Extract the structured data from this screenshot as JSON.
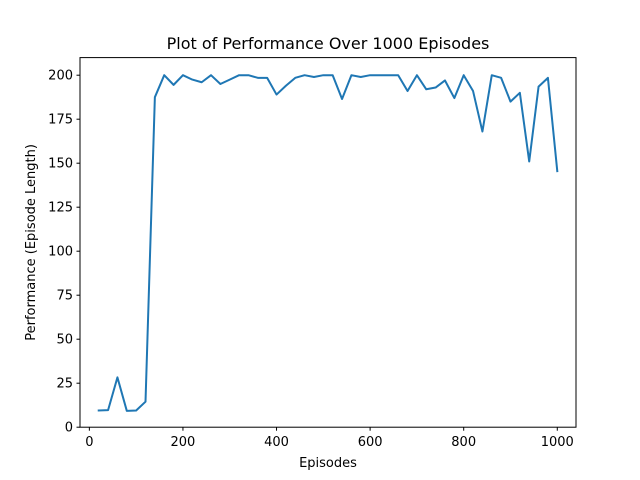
{
  "chart_data": {
    "type": "line",
    "title": "Plot of Performance Over 1000 Episodes",
    "xlabel": "Episodes",
    "ylabel": "Performance (Episode Length)",
    "xlim": [
      -20,
      1040
    ],
    "ylim": [
      0,
      210
    ],
    "xticks": [
      0,
      200,
      400,
      600,
      800,
      1000
    ],
    "yticks": [
      0,
      25,
      50,
      75,
      100,
      125,
      150,
      175,
      200
    ],
    "grid": false,
    "series": [
      {
        "color": "#1f77b4",
        "x": [
          20,
          40,
          60,
          80,
          100,
          120,
          140,
          160,
          180,
          200,
          220,
          240,
          260,
          280,
          300,
          320,
          340,
          360,
          380,
          400,
          420,
          440,
          460,
          480,
          500,
          520,
          540,
          560,
          580,
          600,
          620,
          640,
          660,
          680,
          700,
          720,
          740,
          760,
          780,
          800,
          820,
          840,
          860,
          880,
          900,
          920,
          940,
          960,
          980,
          1000
        ],
        "y": [
          9.5,
          9.7,
          28.3,
          9.3,
          9.5,
          14.5,
          187.5,
          200,
          194.5,
          200,
          197.5,
          196,
          200,
          195,
          197.5,
          200,
          200,
          198.5,
          198.5,
          189,
          194,
          198.5,
          200,
          199,
          200,
          200,
          186.5,
          200,
          199,
          200,
          200,
          200,
          200,
          191,
          200,
          192,
          193,
          197,
          187,
          200,
          191,
          168,
          200,
          198.5,
          185,
          190,
          151,
          193.5,
          198.5,
          145.5
        ]
      }
    ]
  }
}
